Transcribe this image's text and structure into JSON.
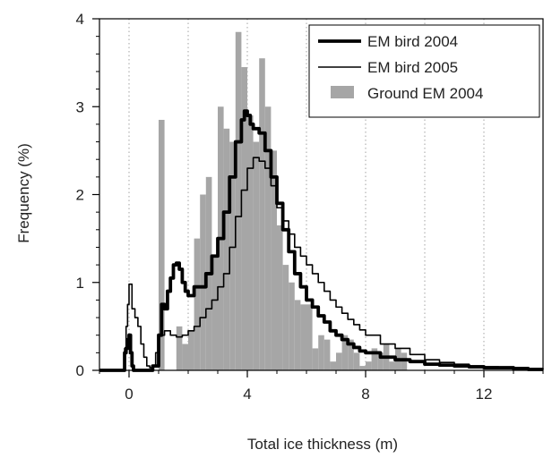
{
  "chart_data": {
    "type": "line",
    "title": "",
    "xlabel": "Total ice thickness (m)",
    "ylabel": "Frequency (%)",
    "xlim": [
      -1,
      14
    ],
    "ylim": [
      0,
      4
    ],
    "x_ticks": [
      0,
      4,
      8,
      12
    ],
    "y_ticks": [
      0,
      1,
      2,
      3,
      4
    ],
    "x_tick_labels": [
      "0",
      "4",
      "8",
      "12"
    ],
    "y_tick_labels": [
      "0",
      "1",
      "2",
      "3",
      "4"
    ],
    "grid": {
      "vertical_dotted_at_x": [
        0,
        2,
        4,
        6,
        8,
        10,
        12
      ]
    },
    "legend": {
      "placement": "top-right",
      "entries": [
        "EM bird 2004",
        "EM bird 2005",
        "Ground EM 2004"
      ]
    },
    "histogram": {
      "name": "Ground EM 2004",
      "bin_width": 0.2,
      "color": "#a6a6a6",
      "bins": [
        [
          1.0,
          2.85
        ],
        [
          1.6,
          0.5
        ],
        [
          1.8,
          0.3
        ],
        [
          2.0,
          0.45
        ],
        [
          2.2,
          1.5
        ],
        [
          2.4,
          2.0
        ],
        [
          2.6,
          2.2
        ],
        [
          2.8,
          1.3
        ],
        [
          3.0,
          3.0
        ],
        [
          3.2,
          2.75
        ],
        [
          3.4,
          2.6
        ],
        [
          3.6,
          3.85
        ],
        [
          3.8,
          3.45
        ],
        [
          4.0,
          2.9
        ],
        [
          4.2,
          2.6
        ],
        [
          4.4,
          3.55
        ],
        [
          4.6,
          3.0
        ],
        [
          4.8,
          2.5
        ],
        [
          5.0,
          1.65
        ],
        [
          5.2,
          1.2
        ],
        [
          5.4,
          1.0
        ],
        [
          5.6,
          0.8
        ],
        [
          5.8,
          0.75
        ],
        [
          6.0,
          0.75
        ],
        [
          6.2,
          0.25
        ],
        [
          6.4,
          0.4
        ],
        [
          6.6,
          0.35
        ],
        [
          6.8,
          0.1
        ],
        [
          7.0,
          0.2
        ],
        [
          7.2,
          0.4
        ],
        [
          7.4,
          0.35
        ],
        [
          7.6,
          0.2
        ],
        [
          7.8,
          0.05
        ],
        [
          8.0,
          0.1
        ],
        [
          8.2,
          0.25
        ],
        [
          8.4,
          0.2
        ],
        [
          8.6,
          0.3
        ],
        [
          8.8,
          0.1
        ],
        [
          9.0,
          0.25
        ],
        [
          9.2,
          0.2
        ]
      ]
    },
    "series": [
      {
        "name": "EM bird 2004",
        "color": "#000000",
        "style": "thick",
        "points": [
          [
            -1.0,
            0
          ],
          [
            -0.2,
            0.0
          ],
          [
            -0.15,
            0.2
          ],
          [
            -0.1,
            0.25
          ],
          [
            -0.05,
            0.35
          ],
          [
            0.0,
            0.4
          ],
          [
            0.05,
            0.2
          ],
          [
            0.1,
            0.05
          ],
          [
            0.15,
            0.0
          ],
          [
            0.8,
            0.05
          ],
          [
            1.0,
            0.4
          ],
          [
            1.1,
            0.75
          ],
          [
            1.2,
            0.7
          ],
          [
            1.3,
            0.9
          ],
          [
            1.4,
            1.05
          ],
          [
            1.5,
            1.2
          ],
          [
            1.6,
            1.22
          ],
          [
            1.7,
            1.15
          ],
          [
            1.8,
            1.0
          ],
          [
            1.9,
            0.9
          ],
          [
            2.0,
            0.85
          ],
          [
            2.2,
            0.95
          ],
          [
            2.4,
            0.95
          ],
          [
            2.6,
            1.1
          ],
          [
            2.8,
            1.3
          ],
          [
            3.0,
            1.5
          ],
          [
            3.2,
            1.8
          ],
          [
            3.4,
            2.2
          ],
          [
            3.6,
            2.6
          ],
          [
            3.8,
            2.85
          ],
          [
            3.9,
            2.95
          ],
          [
            4.0,
            2.9
          ],
          [
            4.1,
            2.8
          ],
          [
            4.2,
            2.75
          ],
          [
            4.4,
            2.7
          ],
          [
            4.6,
            2.5
          ],
          [
            4.8,
            2.2
          ],
          [
            5.0,
            1.9
          ],
          [
            5.2,
            1.6
          ],
          [
            5.4,
            1.35
          ],
          [
            5.6,
            1.1
          ],
          [
            5.8,
            0.95
          ],
          [
            6.0,
            0.8
          ],
          [
            6.2,
            0.72
          ],
          [
            6.4,
            0.62
          ],
          [
            6.6,
            0.55
          ],
          [
            6.8,
            0.45
          ],
          [
            7.0,
            0.4
          ],
          [
            7.2,
            0.35
          ],
          [
            7.4,
            0.3
          ],
          [
            7.6,
            0.26
          ],
          [
            7.8,
            0.22
          ],
          [
            8.0,
            0.2
          ],
          [
            8.5,
            0.15
          ],
          [
            9.0,
            0.12
          ],
          [
            9.5,
            0.1
          ],
          [
            10.0,
            0.07
          ],
          [
            10.5,
            0.06
          ],
          [
            11.0,
            0.05
          ],
          [
            11.5,
            0.04
          ],
          [
            12.0,
            0.03
          ],
          [
            12.5,
            0.03
          ],
          [
            13.0,
            0.02
          ],
          [
            13.5,
            0.01
          ],
          [
            14.0,
            0.01
          ]
        ]
      },
      {
        "name": "EM bird 2005",
        "color": "#000000",
        "style": "thin",
        "points": [
          [
            -1.0,
            0
          ],
          [
            -0.2,
            0.0
          ],
          [
            -0.15,
            0.25
          ],
          [
            -0.1,
            0.5
          ],
          [
            -0.05,
            0.75
          ],
          [
            0.0,
            0.98
          ],
          [
            0.1,
            0.7
          ],
          [
            0.2,
            0.6
          ],
          [
            0.3,
            0.5
          ],
          [
            0.4,
            0.3
          ],
          [
            0.5,
            0.15
          ],
          [
            0.6,
            0.05
          ],
          [
            0.7,
            0.03
          ],
          [
            0.8,
            0.05
          ],
          [
            0.9,
            0.2
          ],
          [
            1.0,
            0.4
          ],
          [
            1.2,
            0.45
          ],
          [
            1.4,
            0.4
          ],
          [
            1.6,
            0.38
          ],
          [
            1.8,
            0.4
          ],
          [
            2.0,
            0.45
          ],
          [
            2.2,
            0.5
          ],
          [
            2.4,
            0.6
          ],
          [
            2.6,
            0.7
          ],
          [
            2.8,
            0.8
          ],
          [
            3.0,
            0.95
          ],
          [
            3.2,
            1.1
          ],
          [
            3.4,
            1.4
          ],
          [
            3.6,
            1.75
          ],
          [
            3.8,
            2.05
          ],
          [
            4.0,
            2.3
          ],
          [
            4.2,
            2.42
          ],
          [
            4.4,
            2.38
          ],
          [
            4.6,
            2.3
          ],
          [
            4.8,
            2.1
          ],
          [
            5.0,
            1.85
          ],
          [
            5.2,
            1.7
          ],
          [
            5.4,
            1.55
          ],
          [
            5.6,
            1.4
          ],
          [
            5.8,
            1.3
          ],
          [
            6.0,
            1.2
          ],
          [
            6.2,
            1.1
          ],
          [
            6.4,
            1.0
          ],
          [
            6.6,
            0.9
          ],
          [
            6.8,
            0.8
          ],
          [
            7.0,
            0.72
          ],
          [
            7.2,
            0.65
          ],
          [
            7.4,
            0.58
          ],
          [
            7.6,
            0.52
          ],
          [
            7.8,
            0.46
          ],
          [
            8.0,
            0.4
          ],
          [
            8.5,
            0.3
          ],
          [
            9.0,
            0.25
          ],
          [
            9.5,
            0.18
          ],
          [
            10.0,
            0.12
          ],
          [
            10.5,
            0.09
          ],
          [
            11.0,
            0.07
          ],
          [
            11.5,
            0.05
          ],
          [
            12.0,
            0.04
          ],
          [
            12.5,
            0.03
          ],
          [
            13.0,
            0.03
          ],
          [
            13.5,
            0.02
          ],
          [
            14.0,
            0.01
          ]
        ]
      }
    ]
  }
}
